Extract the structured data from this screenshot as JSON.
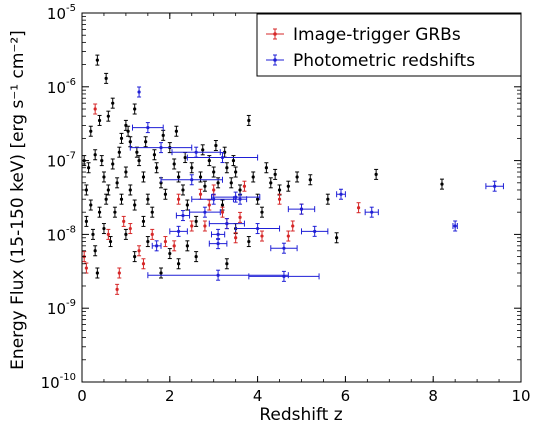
{
  "chart_data": {
    "type": "scatter",
    "xlabel": "Redshift z",
    "ylabel": "Energy Flux (15-150 keV) [erg s⁻¹ cm⁻²]",
    "xlim": [
      0,
      10
    ],
    "ylim": [
      1e-10,
      1e-05
    ],
    "y_scale": "log",
    "grid": false,
    "legend_position": "top-right",
    "x_ticks": [
      "0",
      "2",
      "4",
      "6",
      "8",
      "10"
    ],
    "y_ticks": [
      {
        "base": "10",
        "exp": "-10"
      },
      {
        "base": "10",
        "exp": "-9"
      },
      {
        "base": "10",
        "exp": "-8"
      },
      {
        "base": "10",
        "exp": "-7"
      },
      {
        "base": "10",
        "exp": "-6"
      },
      {
        "base": "10",
        "exp": "-5"
      }
    ],
    "series": [
      {
        "name": "Image-trigger GRBs",
        "color": "#d62728",
        "points": [
          {
            "x": 0.3,
            "y": 5e-07
          },
          {
            "x": 0.05,
            "y": 5e-09
          },
          {
            "x": 0.1,
            "y": 3.5e-09
          },
          {
            "x": 0.8,
            "y": 1.8e-09
          },
          {
            "x": 0.85,
            "y": 3e-09
          },
          {
            "x": 1.1,
            "y": 1.2e-08
          },
          {
            "x": 1.4,
            "y": 4e-09
          },
          {
            "x": 1.6,
            "y": 1e-08
          },
          {
            "x": 1.9,
            "y": 8e-09
          },
          {
            "x": 2.1,
            "y": 7e-09
          },
          {
            "x": 2.2,
            "y": 3e-08
          },
          {
            "x": 2.5,
            "y": 1.3e-08
          },
          {
            "x": 2.7,
            "y": 3.5e-08
          },
          {
            "x": 2.8,
            "y": 1.3e-08
          },
          {
            "x": 3.0,
            "y": 4e-08
          },
          {
            "x": 3.2,
            "y": 2e-08
          },
          {
            "x": 3.3,
            "y": 1.4e-08
          },
          {
            "x": 3.5,
            "y": 9e-09
          },
          {
            "x": 3.7,
            "y": 4.5e-08
          },
          {
            "x": 4.1,
            "y": 9.5e-09
          },
          {
            "x": 4.7,
            "y": 9.5e-09
          },
          {
            "x": 4.8,
            "y": 1.3e-08
          },
          {
            "x": 5.0,
            "y": 2.2e-08
          },
          {
            "x": 6.3,
            "y": 2.3e-08
          },
          {
            "x": 0.6,
            "y": 1e-08
          },
          {
            "x": 0.95,
            "y": 1.5e-08
          },
          {
            "x": 1.3,
            "y": 6e-09
          },
          {
            "x": 4.5,
            "y": 3e-08
          },
          {
            "x": 2.9,
            "y": 2.5e-08
          },
          {
            "x": 3.6,
            "y": 1.7e-08
          }
        ]
      },
      {
        "name": "Photometric redshifts",
        "color": "#1f1fd6",
        "points": [
          {
            "x": 1.3,
            "y": 8.5e-07
          },
          {
            "x": 1.5,
            "y": 2.8e-07
          },
          {
            "x": 1.8,
            "y": 1.5e-07
          },
          {
            "x": 2.6,
            "y": 1.3e-07
          },
          {
            "x": 3.2,
            "y": 1.1e-07
          },
          {
            "x": 2.5,
            "y": 5.5e-08
          },
          {
            "x": 3.0,
            "y": 3e-08
          },
          {
            "x": 3.5,
            "y": 3.2e-08
          },
          {
            "x": 2.8,
            "y": 2e-08
          },
          {
            "x": 2.3,
            "y": 1.8e-08
          },
          {
            "x": 3.3,
            "y": 1.4e-08
          },
          {
            "x": 2.2,
            "y": 1.1e-08
          },
          {
            "x": 3.1,
            "y": 1e-08
          },
          {
            "x": 4.0,
            "y": 1.2e-08
          },
          {
            "x": 3.1,
            "y": 2.8e-09
          },
          {
            "x": 4.6,
            "y": 2.7e-09
          },
          {
            "x": 4.6,
            "y": 6.5e-09
          },
          {
            "x": 3.1,
            "y": 7.5e-09
          },
          {
            "x": 3.6,
            "y": 3e-08
          },
          {
            "x": 5.0,
            "y": 2.2e-08
          },
          {
            "x": 5.3,
            "y": 1.1e-08
          },
          {
            "x": 5.9,
            "y": 3.5e-08
          },
          {
            "x": 6.6,
            "y": 2e-08
          },
          {
            "x": 8.5,
            "y": 1.3e-08
          },
          {
            "x": 9.4,
            "y": 4.5e-08
          },
          {
            "x": 1.7,
            "y": 7e-09
          }
        ]
      },
      {
        "name": "",
        "color": "#000000",
        "points": [
          {
            "x": 0.35,
            "y": 2.3e-06
          },
          {
            "x": 0.55,
            "y": 1.3e-06
          },
          {
            "x": 0.2,
            "y": 2.5e-07
          },
          {
            "x": 0.4,
            "y": 3.5e-07
          },
          {
            "x": 0.6,
            "y": 4e-07
          },
          {
            "x": 0.7,
            "y": 6e-07
          },
          {
            "x": 0.9,
            "y": 2e-07
          },
          {
            "x": 1.0,
            "y": 3e-07
          },
          {
            "x": 1.1,
            "y": 1.8e-07
          },
          {
            "x": 1.2,
            "y": 5e-07
          },
          {
            "x": 0.3,
            "y": 1.2e-07
          },
          {
            "x": 0.15,
            "y": 8e-08
          },
          {
            "x": 0.45,
            "y": 1e-07
          },
          {
            "x": 0.5,
            "y": 6e-08
          },
          {
            "x": 0.6,
            "y": 4e-08
          },
          {
            "x": 0.7,
            "y": 9e-08
          },
          {
            "x": 0.8,
            "y": 5e-08
          },
          {
            "x": 0.9,
            "y": 3e-08
          },
          {
            "x": 1.0,
            "y": 7e-08
          },
          {
            "x": 1.1,
            "y": 4e-08
          },
          {
            "x": 1.2,
            "y": 2.5e-08
          },
          {
            "x": 1.3,
            "y": 1e-07
          },
          {
            "x": 1.4,
            "y": 6e-08
          },
          {
            "x": 1.5,
            "y": 3e-08
          },
          {
            "x": 1.6,
            "y": 2e-08
          },
          {
            "x": 1.7,
            "y": 8e-08
          },
          {
            "x": 1.8,
            "y": 5e-08
          },
          {
            "x": 1.9,
            "y": 3.5e-08
          },
          {
            "x": 2.0,
            "y": 1.5e-07
          },
          {
            "x": 2.1,
            "y": 9e-08
          },
          {
            "x": 2.2,
            "y": 6e-08
          },
          {
            "x": 2.3,
            "y": 4e-08
          },
          {
            "x": 2.4,
            "y": 2.5e-08
          },
          {
            "x": 2.5,
            "y": 8e-08
          },
          {
            "x": 2.6,
            "y": 1.5e-08
          },
          {
            "x": 2.7,
            "y": 6e-08
          },
          {
            "x": 2.8,
            "y": 4.5e-08
          },
          {
            "x": 2.9,
            "y": 1e-07
          },
          {
            "x": 3.0,
            "y": 7e-08
          },
          {
            "x": 3.1,
            "y": 5e-08
          },
          {
            "x": 3.2,
            "y": 2.5e-08
          },
          {
            "x": 3.3,
            "y": 8e-08
          },
          {
            "x": 3.4,
            "y": 5e-08
          },
          {
            "x": 3.5,
            "y": 7e-08
          },
          {
            "x": 3.6,
            "y": 4e-08
          },
          {
            "x": 3.8,
            "y": 3.5e-07
          },
          {
            "x": 3.9,
            "y": 6e-08
          },
          {
            "x": 4.0,
            "y": 3e-08
          },
          {
            "x": 4.1,
            "y": 2e-08
          },
          {
            "x": 4.3,
            "y": 5e-08
          },
          {
            "x": 4.5,
            "y": 4e-08
          },
          {
            "x": 4.9,
            "y": 6e-08
          },
          {
            "x": 5.6,
            "y": 3e-08
          },
          {
            "x": 5.8,
            "y": 9e-09
          },
          {
            "x": 6.7,
            "y": 6.5e-08
          },
          {
            "x": 8.2,
            "y": 4.8e-08
          },
          {
            "x": 0.1,
            "y": 1.5e-08
          },
          {
            "x": 0.25,
            "y": 1e-08
          },
          {
            "x": 0.3,
            "y": 6e-09
          },
          {
            "x": 0.35,
            "y": 3e-09
          },
          {
            "x": 0.5,
            "y": 1.2e-08
          },
          {
            "x": 0.65,
            "y": 8e-09
          },
          {
            "x": 0.75,
            "y": 2e-08
          },
          {
            "x": 1.0,
            "y": 1e-08
          },
          {
            "x": 1.2,
            "y": 5e-09
          },
          {
            "x": 1.4,
            "y": 1.5e-08
          },
          {
            "x": 1.5,
            "y": 8e-09
          },
          {
            "x": 1.8,
            "y": 3e-09
          },
          {
            "x": 2.0,
            "y": 5.5e-09
          },
          {
            "x": 2.2,
            "y": 4e-09
          },
          {
            "x": 2.4,
            "y": 7e-09
          },
          {
            "x": 2.6,
            "y": 5e-09
          },
          {
            "x": 3.3,
            "y": 4e-09
          },
          {
            "x": 3.5,
            "y": 1.2e-08
          },
          {
            "x": 3.8,
            "y": 8e-09
          },
          {
            "x": 0.05,
            "y": 1e-07
          },
          {
            "x": 0.1,
            "y": 4e-08
          },
          {
            "x": 0.2,
            "y": 2.5e-08
          },
          {
            "x": 0.4,
            "y": 2e-08
          },
          {
            "x": 0.55,
            "y": 3e-08
          },
          {
            "x": 0.85,
            "y": 1.3e-07
          },
          {
            "x": 1.05,
            "y": 2.5e-07
          },
          {
            "x": 1.25,
            "y": 1.3e-07
          },
          {
            "x": 1.45,
            "y": 1.8e-07
          },
          {
            "x": 1.65,
            "y": 1.2e-07
          },
          {
            "x": 1.85,
            "y": 2.2e-07
          },
          {
            "x": 2.15,
            "y": 2.5e-07
          },
          {
            "x": 2.35,
            "y": 1.1e-07
          },
          {
            "x": 2.75,
            "y": 1.4e-07
          },
          {
            "x": 3.05,
            "y": 1.6e-07
          },
          {
            "x": 3.25,
            "y": 1.3e-07
          },
          {
            "x": 3.45,
            "y": 1e-07
          },
          {
            "x": 4.2,
            "y": 8e-08
          },
          {
            "x": 4.4,
            "y": 6.5e-08
          },
          {
            "x": 4.7,
            "y": 4.5e-08
          },
          {
            "x": 5.2,
            "y": 5.5e-08
          }
        ]
      }
    ],
    "photometric_xerr": [
      0.0,
      0.35,
      0.7,
      0.55,
      0.8,
      0.7,
      0.5,
      0.55,
      0.35,
      0.15,
      0.4,
      0.2,
      0.15,
      0.5,
      1.6,
      0.8,
      0.3,
      0.2,
      0.15,
      0.3,
      0.3,
      0.1,
      0.15,
      0.05,
      0.2,
      0.1
    ]
  }
}
